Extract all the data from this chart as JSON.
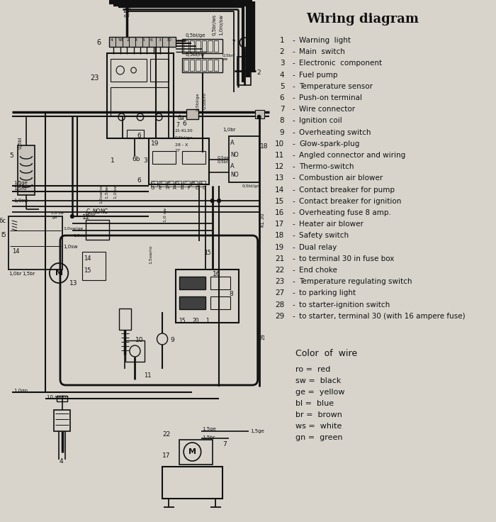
{
  "title": "Wiring diagram",
  "bg_color": "#d8d4cc",
  "legend_items": [
    [
      "1",
      "Warning  light"
    ],
    [
      "2",
      "Main  switch"
    ],
    [
      "3",
      "Electronic  component"
    ],
    [
      "4",
      "Fuel pump"
    ],
    [
      "5",
      "Temperature sensor"
    ],
    [
      "6",
      "Push-on terminal"
    ],
    [
      "7",
      "Wire connector"
    ],
    [
      "8",
      "Ignition coil"
    ],
    [
      "9",
      "Overheating switch"
    ],
    [
      "10",
      "Glow-spark-plug"
    ],
    [
      "11",
      "Angled connector and wiring"
    ],
    [
      "12",
      "Thermo-switch"
    ],
    [
      "13",
      "Combustion air blower"
    ],
    [
      "14",
      "Contact breaker for pump"
    ],
    [
      "15",
      "Contact breaker for ignition"
    ],
    [
      "16",
      "Overheating fuse 8 amp."
    ],
    [
      "17",
      "Heater air blower"
    ],
    [
      "18",
      "Safety switch"
    ],
    [
      "19",
      "Dual relay"
    ],
    [
      "21",
      "to terminal 30 in fuse box"
    ],
    [
      "22",
      "End choke"
    ],
    [
      "23",
      "Temperature regulating switch"
    ],
    [
      "27",
      "to parking light"
    ],
    [
      "28",
      "to starter-ignition switch"
    ],
    [
      "29",
      "to starter, terminal 30 (with 16 ampere fuse)"
    ]
  ],
  "color_legend_title": "Color  of  wire",
  "color_items": [
    [
      "ro",
      "red"
    ],
    [
      "sw",
      "black"
    ],
    [
      "ge",
      "yellow"
    ],
    [
      "bl",
      "blue"
    ],
    [
      "br",
      "brown"
    ],
    [
      "ws",
      "white"
    ],
    [
      "gn",
      "green"
    ]
  ],
  "text_color": "#111111",
  "line_color": "#111111",
  "bg_paper": "#ccc8bf"
}
